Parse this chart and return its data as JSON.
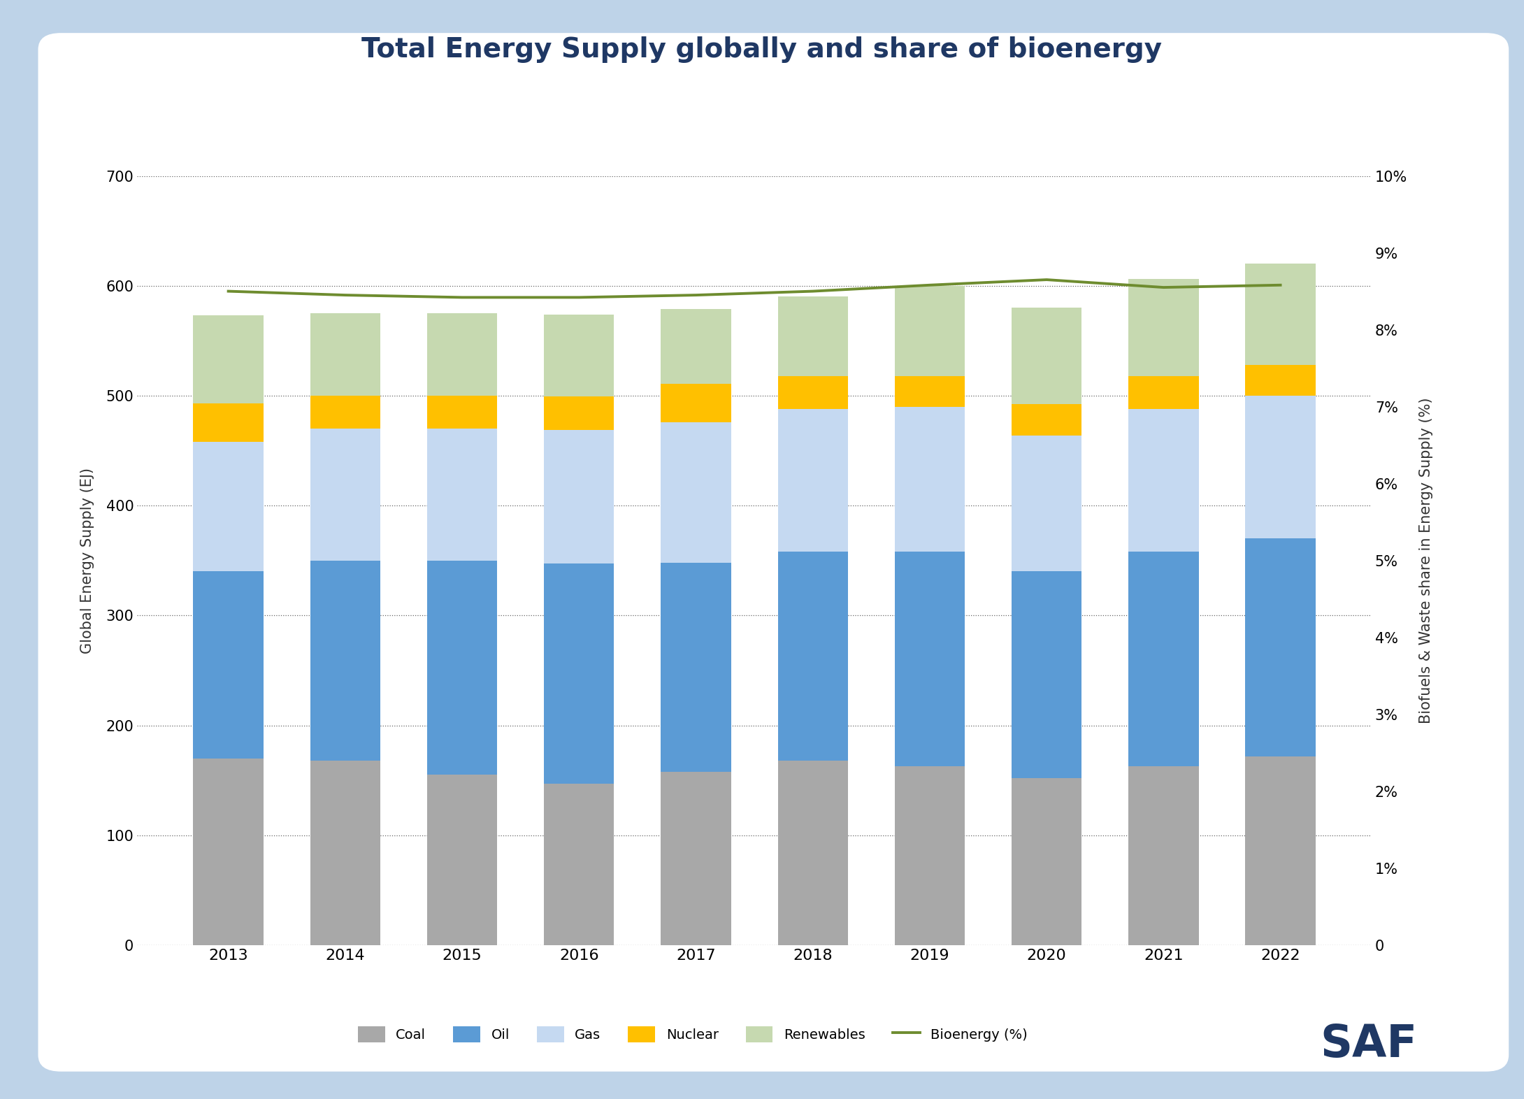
{
  "title": "Total Energy Supply globally and share of bioenergy",
  "years": [
    2013,
    2014,
    2015,
    2016,
    2017,
    2018,
    2019,
    2020,
    2021,
    2022
  ],
  "coal": [
    170,
    168,
    155,
    147,
    158,
    168,
    163,
    152,
    163,
    172
  ],
  "oil": [
    170,
    182,
    195,
    200,
    190,
    190,
    195,
    188,
    195,
    198
  ],
  "gas": [
    118,
    120,
    120,
    122,
    128,
    130,
    132,
    124,
    130,
    130
  ],
  "nuclear": [
    35,
    30,
    30,
    30,
    35,
    30,
    28,
    28,
    30,
    28
  ],
  "renewables": [
    80,
    75,
    75,
    75,
    68,
    72,
    82,
    88,
    88,
    92
  ],
  "bioenergy_pct": [
    8.5,
    8.45,
    8.42,
    8.42,
    8.45,
    8.5,
    8.58,
    8.65,
    8.55,
    8.58
  ],
  "coal_color": "#a8a8a8",
  "oil_color": "#5b9bd5",
  "gas_color": "#c5d9f1",
  "nuclear_color": "#ffc000",
  "renewables_color": "#c6d9b0",
  "bioenergy_line_color": "#6e8c2f",
  "background_outer": "#bed3e8",
  "background_inner": "#ffffff",
  "title_color": "#1f3864",
  "ylabel_left": "Global Energy Supply (EJ)",
  "ylabel_right": "Biofuels & Waste share in Energy Supply (%)",
  "ylim_left": [
    0,
    700
  ],
  "ylim_right": [
    0,
    10
  ],
  "yticks_left": [
    0,
    100,
    200,
    300,
    400,
    500,
    600,
    700
  ],
  "yticks_right": [
    0,
    1,
    2,
    3,
    4,
    5,
    6,
    7,
    8,
    9,
    10
  ],
  "saf_color": "#1f3864"
}
